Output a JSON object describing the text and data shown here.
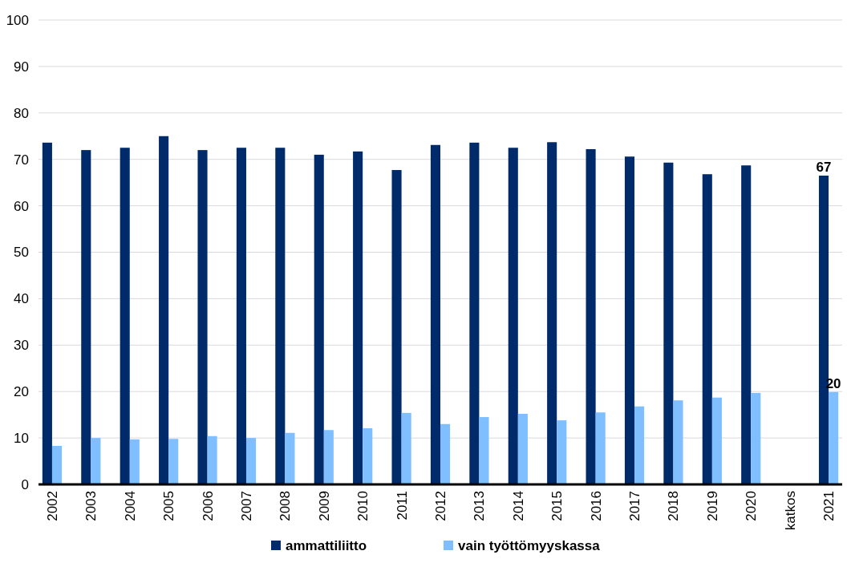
{
  "chart_data": {
    "type": "bar",
    "categories": [
      "2002",
      "2003",
      "2004",
      "2005",
      "2006",
      "2007",
      "2008",
      "2009",
      "2010",
      "2011",
      "2012",
      "2013",
      "2014",
      "2015",
      "2016",
      "2017",
      "2018",
      "2019",
      "2020",
      "katkos",
      "2021"
    ],
    "series": [
      {
        "name": "ammattiliitto",
        "color": "#002b6b",
        "values": [
          73.6,
          72.0,
          72.5,
          75.0,
          72.0,
          72.5,
          72.5,
          71.0,
          71.7,
          67.7,
          73.1,
          73.6,
          72.5,
          73.7,
          72.2,
          70.6,
          69.3,
          66.8,
          68.7,
          null,
          66.5
        ],
        "value_labels": [
          null,
          null,
          null,
          null,
          null,
          null,
          null,
          null,
          null,
          null,
          null,
          null,
          null,
          null,
          null,
          null,
          null,
          null,
          null,
          null,
          "67"
        ]
      },
      {
        "name": "vain työttömyyskassa",
        "color": "#7fbfff",
        "values": [
          8.3,
          10.0,
          9.7,
          9.8,
          10.4,
          10.0,
          11.1,
          11.7,
          12.1,
          15.4,
          13.0,
          14.5,
          15.2,
          13.8,
          15.5,
          16.8,
          18.1,
          18.7,
          19.7,
          null,
          19.9
        ],
        "value_labels": [
          null,
          null,
          null,
          null,
          null,
          null,
          null,
          null,
          null,
          null,
          null,
          null,
          null,
          null,
          null,
          null,
          null,
          null,
          null,
          null,
          "20"
        ]
      }
    ],
    "ylim": [
      0,
      100
    ],
    "yticks": [
      0,
      10,
      20,
      30,
      40,
      50,
      60,
      70,
      80,
      90,
      100
    ],
    "grid": "y",
    "legend": "bottom"
  }
}
